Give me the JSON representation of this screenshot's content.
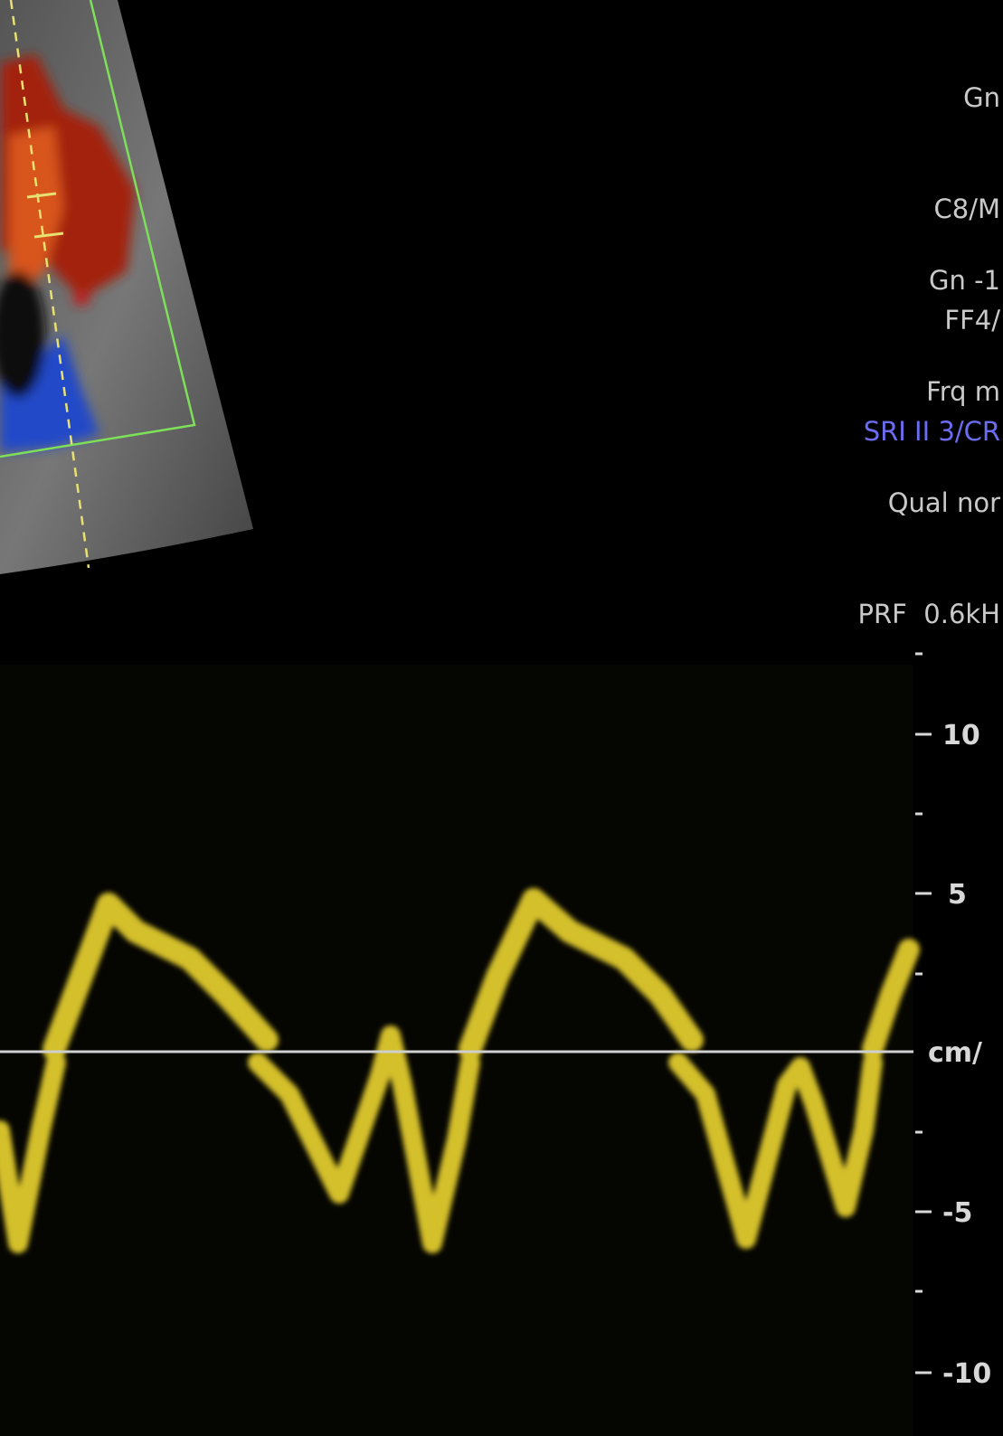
{
  "settings": {
    "group1": [
      "Gn",
      "C8/M",
      "FF4/",
      "SRI II 3/CR"
    ],
    "group2": [
      "Gn -1",
      "Frq m",
      "Qual nor",
      "PRF  0.6kH"
    ]
  },
  "scale": {
    "labels": [
      "10",
      "5",
      "cm/",
      "-5",
      "-10"
    ]
  }
}
